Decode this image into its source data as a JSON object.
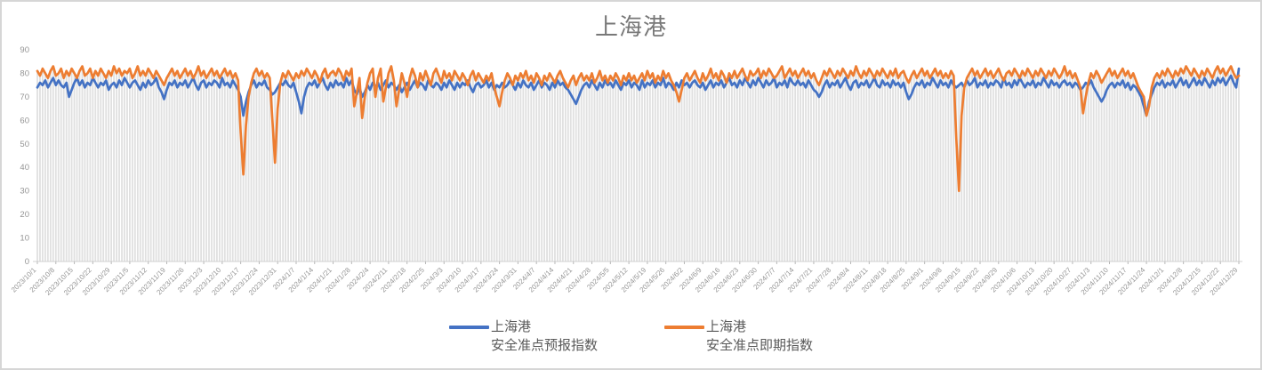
{
  "title": "上海港",
  "legend": [
    {
      "line1": "上海港",
      "line2": "安全准点预报指数",
      "color": "#4472C4"
    },
    {
      "line1": "上海港",
      "line2": "安全准点即期指数",
      "color": "#ED7D31"
    }
  ],
  "style": {
    "series1_color": "#4472C4",
    "series2_color": "#ED7D31",
    "dropline_color": "#e0e0e0",
    "axis_color": "#d0d0d0",
    "tick_color": "#b8b8b8",
    "axis_label_color": "#949494",
    "title_color": "#787878",
    "legend_text_color": "#595959",
    "frame_border_color": "#d6d6d6",
    "background": "#ffffff"
  },
  "chart_data": {
    "type": "line",
    "title": "上海港",
    "x_start": "2023/10/1",
    "x_end": "2024/12/29",
    "x_unit": "day",
    "x_tick_interval_days": 7,
    "grid": "droplines",
    "legend_position": "bottom",
    "ylim": [
      0,
      90
    ],
    "y_ticks": [
      0,
      10,
      20,
      30,
      40,
      50,
      60,
      70,
      80,
      90
    ],
    "x_tick_labels": [
      "2023/10/1",
      "2023/10/8",
      "2023/10/15",
      "2023/10/22",
      "2023/10/29",
      "2023/11/5",
      "2023/11/12",
      "2023/11/19",
      "2023/11/26",
      "2023/12/3",
      "2023/12/10",
      "2023/12/17",
      "2023/12/24",
      "2023/12/31",
      "2024/1/7",
      "2024/1/14",
      "2024/1/21",
      "2024/1/28",
      "2024/2/4",
      "2024/2/11",
      "2024/2/18",
      "2024/2/25",
      "2024/3/3",
      "2024/3/10",
      "2024/3/17",
      "2024/3/24",
      "2024/3/31",
      "2024/4/7",
      "2024/4/14",
      "2024/4/21",
      "2024/4/28",
      "2024/5/5",
      "2024/5/12",
      "2024/5/19",
      "2024/5/26",
      "2024/6/2",
      "2024/6/9",
      "2024/6/16",
      "2024/6/23",
      "2024/6/30",
      "2024/7/7",
      "2024/7/14",
      "2024/7/21",
      "2024/7/28",
      "2024/8/4",
      "2024/8/11",
      "2024/8/18",
      "2024/8/25",
      "2024/9/1",
      "2024/9/8",
      "2024/9/15",
      "2024/9/22",
      "2024/9/29",
      "2024/10/6",
      "2024/10/13",
      "2024/10/20",
      "2024/10/27",
      "2024/11/3",
      "2024/11/10",
      "2024/11/17",
      "2024/11/24",
      "2024/12/1",
      "2024/12/8",
      "2024/12/15",
      "2024/12/22",
      "2024/12/29"
    ],
    "series": [
      {
        "name": "上海港 安全准点预报指数",
        "color": "#4472C4",
        "values": [
          74,
          76,
          75,
          77,
          74,
          76,
          78,
          75,
          77,
          75,
          74,
          76,
          70,
          73,
          76,
          78,
          75,
          77,
          74,
          76,
          75,
          78,
          76,
          74,
          76,
          75,
          77,
          73,
          75,
          76,
          74,
          77,
          75,
          78,
          76,
          74,
          76,
          77,
          75,
          73,
          76,
          74,
          77,
          75,
          76,
          78,
          74,
          72,
          69,
          73,
          76,
          75,
          77,
          74,
          76,
          75,
          77,
          74,
          76,
          78,
          75,
          73,
          76,
          77,
          74,
          76,
          75,
          77,
          76,
          74,
          78,
          75,
          76,
          74,
          77,
          75,
          73,
          70,
          62,
          68,
          72,
          75,
          77,
          74,
          76,
          75,
          77,
          74,
          73,
          71,
          72,
          74,
          76,
          75,
          77,
          75,
          74,
          76,
          72,
          68,
          63,
          70,
          74,
          76,
          75,
          77,
          74,
          76,
          78,
          75,
          73,
          76,
          74,
          77,
          75,
          76,
          74,
          78,
          75,
          77,
          73,
          71,
          74,
          70,
          72,
          75,
          73,
          76,
          74,
          76,
          73,
          75,
          77,
          74,
          76,
          75,
          73,
          75,
          72,
          74,
          76,
          73,
          75,
          77,
          74,
          76,
          75,
          73,
          77,
          75,
          74,
          76,
          75,
          73,
          76,
          74,
          77,
          75,
          73,
          76,
          74,
          76,
          75,
          77,
          74,
          72,
          75,
          76,
          74,
          75,
          77,
          74,
          76,
          73,
          75,
          74,
          76,
          74,
          75,
          77,
          75,
          73,
          76,
          74,
          77,
          75,
          74,
          76,
          73,
          75,
          77,
          74,
          76,
          75,
          73,
          76,
          74,
          77,
          75,
          76,
          74,
          73,
          71,
          69,
          67,
          70,
          73,
          75,
          76,
          74,
          77,
          75,
          73,
          76,
          74,
          77,
          75,
          76,
          74,
          77,
          75,
          73,
          76,
          75,
          77,
          74,
          76,
          75,
          73,
          77,
          74,
          76,
          75,
          77,
          74,
          76,
          75,
          78,
          74,
          76,
          75,
          73,
          76,
          74,
          77,
          75,
          76,
          74,
          76,
          77,
          75,
          74,
          76,
          73,
          75,
          77,
          74,
          76,
          75,
          77,
          74,
          76,
          78,
          75,
          76,
          74,
          77,
          75,
          78,
          76,
          74,
          77,
          75,
          78,
          76,
          74,
          77,
          75,
          76,
          78,
          74,
          76,
          75,
          77,
          74,
          78,
          76,
          75,
          77,
          75,
          76,
          74,
          77,
          75,
          73,
          72,
          70,
          72,
          75,
          77,
          74,
          76,
          75,
          77,
          74,
          76,
          78,
          75,
          73,
          76,
          77,
          74,
          76,
          75,
          77,
          74,
          76,
          78,
          75,
          74,
          77,
          75,
          76,
          74,
          77,
          75,
          76,
          74,
          76,
          72,
          69,
          71,
          74,
          76,
          75,
          77,
          74,
          76,
          75,
          78,
          76,
          74,
          77,
          75,
          76,
          74,
          77,
          75,
          74,
          75,
          76,
          74,
          77,
          75,
          76,
          78,
          74,
          76,
          75,
          77,
          74,
          76,
          75,
          77,
          76,
          74,
          78,
          75,
          76,
          74,
          77,
          75,
          78,
          76,
          74,
          76,
          75,
          77,
          74,
          76,
          75,
          78,
          76,
          74,
          77,
          75,
          76,
          74,
          76,
          77,
          75,
          76,
          74,
          76,
          75,
          73,
          74,
          76,
          75,
          77,
          74,
          72,
          70,
          68,
          70,
          73,
          75,
          76,
          74,
          76,
          75,
          77,
          74,
          76,
          73,
          75,
          74,
          72,
          70,
          66,
          62,
          68,
          71,
          74,
          76,
          75,
          77,
          74,
          76,
          75,
          77,
          74,
          76,
          78,
          75,
          77,
          74,
          76,
          78,
          75,
          77,
          75,
          78,
          76,
          74,
          77,
          75,
          78,
          76,
          78,
          75,
          77,
          79,
          76,
          74,
          82
        ]
      },
      {
        "name": "上海港 安全准点即期指数",
        "color": "#ED7D31",
        "values": [
          81,
          79,
          82,
          80,
          78,
          81,
          83,
          79,
          80,
          82,
          78,
          81,
          79,
          82,
          80,
          78,
          81,
          83,
          79,
          80,
          82,
          78,
          81,
          79,
          82,
          80,
          78,
          81,
          79,
          83,
          80,
          82,
          79,
          81,
          80,
          82,
          78,
          80,
          83,
          79,
          81,
          79,
          82,
          80,
          78,
          81,
          79,
          77,
          75,
          78,
          80,
          82,
          79,
          81,
          78,
          80,
          82,
          79,
          81,
          78,
          80,
          83,
          79,
          81,
          78,
          80,
          82,
          79,
          81,
          78,
          80,
          82,
          79,
          81,
          78,
          80,
          77,
          55,
          37,
          58,
          70,
          76,
          80,
          82,
          79,
          81,
          78,
          80,
          78,
          60,
          42,
          65,
          76,
          80,
          78,
          81,
          79,
          77,
          80,
          78,
          81,
          79,
          82,
          80,
          78,
          81,
          79,
          76,
          80,
          82,
          78,
          80,
          81,
          79,
          82,
          80,
          77,
          81,
          79,
          82,
          66,
          72,
          78,
          61,
          70,
          76,
          80,
          82,
          70,
          78,
          82,
          68,
          74,
          80,
          83,
          77,
          66,
          73,
          80,
          76,
          70,
          78,
          82,
          79,
          74,
          80,
          77,
          81,
          78,
          75,
          80,
          82,
          79,
          76,
          81,
          78,
          80,
          77,
          81,
          79,
          77,
          80,
          78,
          75,
          79,
          81,
          77,
          80,
          78,
          76,
          79,
          77,
          80,
          74,
          70,
          66,
          72,
          77,
          80,
          78,
          75,
          79,
          77,
          80,
          78,
          81,
          77,
          79,
          76,
          80,
          78,
          75,
          79,
          77,
          80,
          78,
          76,
          79,
          81,
          78,
          76,
          74,
          77,
          79,
          75,
          78,
          80,
          77,
          79,
          77,
          80,
          76,
          78,
          81,
          77,
          79,
          76,
          79,
          77,
          80,
          78,
          75,
          79,
          77,
          80,
          77,
          79,
          76,
          78,
          80,
          77,
          81,
          78,
          80,
          76,
          79,
          77,
          81,
          78,
          80,
          77,
          75,
          72,
          68,
          73,
          78,
          80,
          77,
          79,
          81,
          78,
          76,
          80,
          77,
          79,
          82,
          78,
          80,
          77,
          81,
          79,
          76,
          80,
          78,
          81,
          78,
          80,
          82,
          79,
          77,
          81,
          79,
          80,
          82,
          78,
          81,
          79,
          82,
          80,
          78,
          79,
          81,
          83,
          78,
          80,
          82,
          79,
          81,
          78,
          80,
          82,
          79,
          81,
          78,
          80,
          77,
          75,
          78,
          81,
          79,
          82,
          80,
          78,
          81,
          79,
          82,
          80,
          78,
          81,
          79,
          83,
          80,
          78,
          81,
          79,
          82,
          80,
          78,
          81,
          79,
          82,
          80,
          78,
          81,
          79,
          82,
          78,
          80,
          81,
          78,
          76,
          79,
          81,
          78,
          80,
          82,
          79,
          81,
          78,
          80,
          82,
          79,
          81,
          78,
          80,
          78,
          81,
          79,
          52,
          30,
          62,
          74,
          78,
          80,
          82,
          79,
          81,
          78,
          80,
          82,
          79,
          81,
          78,
          80,
          82,
          79,
          77,
          80,
          81,
          79,
          82,
          80,
          78,
          81,
          79,
          82,
          80,
          78,
          81,
          79,
          82,
          80,
          78,
          81,
          79,
          82,
          80,
          78,
          80,
          83,
          79,
          81,
          78,
          80,
          77,
          74,
          63,
          70,
          76,
          80,
          78,
          81,
          79,
          76,
          78,
          80,
          82,
          79,
          81,
          78,
          80,
          82,
          79,
          81,
          78,
          80,
          77,
          74,
          72,
          70,
          62,
          66,
          74,
          78,
          80,
          78,
          81,
          79,
          82,
          80,
          78,
          81,
          79,
          82,
          80,
          83,
          81,
          79,
          82,
          80,
          78,
          81,
          79,
          82,
          80,
          78,
          81,
          83,
          80,
          82,
          79,
          81,
          83,
          80,
          78,
          79
        ]
      }
    ]
  }
}
